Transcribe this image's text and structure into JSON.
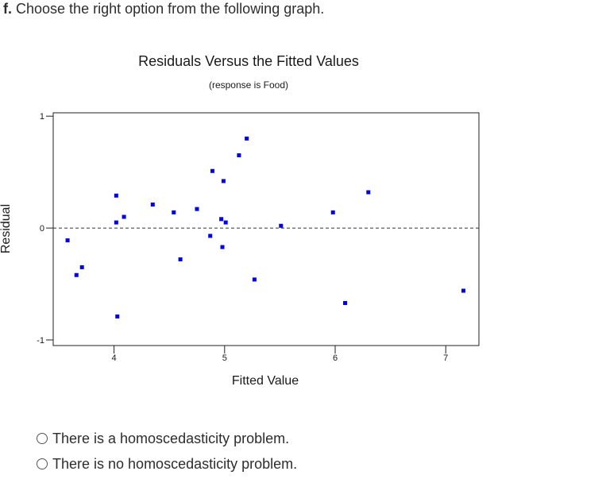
{
  "question": {
    "label": "f.",
    "text": "Choose the right option from the following graph."
  },
  "chart_data": {
    "type": "scatter",
    "title": "Residuals Versus the Fitted Values",
    "subtitle": "(response is Food)",
    "xlabel": "Fitted Value",
    "ylabel": "Residual",
    "xlim": [
      3.45,
      7.3
    ],
    "ylim": [
      -1.05,
      1.03
    ],
    "x_ticks": [
      4,
      5,
      6,
      7
    ],
    "y_ticks": [
      -1,
      0,
      1
    ],
    "x_tick_labels": [
      "4",
      "5",
      "6",
      "7"
    ],
    "y_tick_labels": [
      "-1",
      "0",
      "1"
    ],
    "reference_line": 0,
    "grid": false,
    "point_color": "#0000e0",
    "points": [
      {
        "x": 3.58,
        "y": -0.11
      },
      {
        "x": 3.66,
        "y": -0.42
      },
      {
        "x": 3.71,
        "y": -0.35
      },
      {
        "x": 4.02,
        "y": 0.29
      },
      {
        "x": 4.02,
        "y": 0.05
      },
      {
        "x": 4.03,
        "y": -0.79
      },
      {
        "x": 4.09,
        "y": 0.1
      },
      {
        "x": 4.35,
        "y": 0.21
      },
      {
        "x": 4.54,
        "y": 0.14
      },
      {
        "x": 4.6,
        "y": -0.28
      },
      {
        "x": 4.75,
        "y": 0.17
      },
      {
        "x": 4.87,
        "y": -0.07
      },
      {
        "x": 4.89,
        "y": 0.51
      },
      {
        "x": 4.97,
        "y": 0.08
      },
      {
        "x": 4.98,
        "y": -0.17
      },
      {
        "x": 4.99,
        "y": 0.42
      },
      {
        "x": 5.01,
        "y": 0.05
      },
      {
        "x": 5.13,
        "y": 0.65
      },
      {
        "x": 5.2,
        "y": 0.8
      },
      {
        "x": 5.27,
        "y": -0.46
      },
      {
        "x": 5.51,
        "y": 0.02
      },
      {
        "x": 5.98,
        "y": 0.14
      },
      {
        "x": 6.09,
        "y": -0.67
      },
      {
        "x": 6.3,
        "y": 0.32
      },
      {
        "x": 7.16,
        "y": -0.56
      }
    ]
  },
  "options": [
    {
      "label": "There is a homoscedasticity problem."
    },
    {
      "label": "There is no homoscedasticity problem."
    }
  ]
}
